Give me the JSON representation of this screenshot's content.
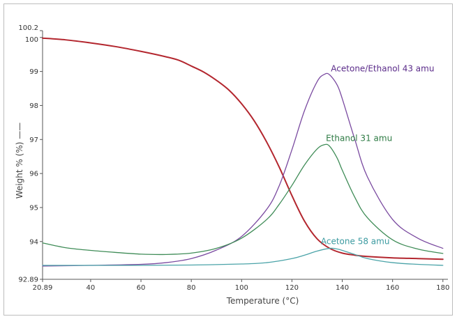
{
  "chart_data": {
    "type": "line",
    "title": "",
    "xlabel": "Temperature (°C)",
    "ylabel": "Weight % (%) ——",
    "xlim": [
      20.89,
      182
    ],
    "ylim": [
      92.89,
      100.2
    ],
    "x_ticks": [
      "20.89",
      "40",
      "60",
      "80",
      "100",
      "120",
      "140",
      "160",
      "180"
    ],
    "x_tick_values": [
      20.89,
      40,
      60,
      80,
      100,
      120,
      140,
      160,
      180
    ],
    "y_ticks": [
      "92.89",
      "94",
      "95",
      "96",
      "97",
      "98",
      "99",
      "100",
      "100.2"
    ],
    "y_tick_values": [
      92.89,
      94,
      95,
      96,
      97,
      98,
      99,
      100,
      100.2
    ],
    "grid": false,
    "legend": "none",
    "series": [
      {
        "color": "#b3262e",
        "x": [
          20.89,
          30,
          40,
          50,
          60,
          70,
          75,
          80,
          85,
          90,
          95,
          100,
          105,
          110,
          115,
          120,
          125,
          130,
          135,
          140,
          145,
          150,
          160,
          170,
          180
        ],
        "values": [
          99.98,
          99.93,
          99.84,
          99.73,
          99.59,
          99.43,
          99.33,
          99.16,
          98.98,
          98.74,
          98.45,
          98.05,
          97.55,
          96.92,
          96.18,
          95.35,
          94.6,
          94.08,
          93.8,
          93.66,
          93.6,
          93.56,
          93.52,
          93.5,
          93.48
        ]
      },
      {
        "name": "Acetone/Ethanol 43 amu",
        "color": "#7a4aa0",
        "x": [
          20.89,
          40,
          60,
          70,
          80,
          90,
          100,
          110,
          115,
          120,
          125,
          130,
          133,
          135,
          138,
          140,
          145,
          150,
          160,
          170,
          180
        ],
        "values": [
          93.28,
          93.3,
          93.33,
          93.38,
          93.5,
          93.75,
          94.15,
          94.95,
          95.65,
          96.7,
          97.85,
          98.7,
          98.92,
          98.9,
          98.6,
          98.2,
          97.0,
          95.9,
          94.65,
          94.1,
          93.8
        ]
      },
      {
        "name": "Ethanol 31 amu",
        "color": "#3f8c57",
        "x": [
          20.89,
          30,
          40,
          50,
          60,
          70,
          80,
          90,
          100,
          110,
          115,
          120,
          125,
          130,
          133,
          135,
          138,
          140,
          145,
          150,
          160,
          170,
          180
        ],
        "values": [
          93.96,
          93.82,
          93.74,
          93.68,
          93.63,
          93.62,
          93.66,
          93.8,
          94.1,
          94.65,
          95.1,
          95.65,
          96.25,
          96.72,
          96.85,
          96.8,
          96.45,
          96.1,
          95.3,
          94.7,
          94.05,
          93.78,
          93.65
        ]
      },
      {
        "name": "Acetone 58 amu",
        "color": "#4aa3a8",
        "x": [
          20.89,
          40,
          60,
          80,
          100,
          110,
          120,
          125,
          130,
          135,
          138,
          140,
          145,
          150,
          160,
          170,
          180
        ],
        "values": [
          93.3,
          93.3,
          93.3,
          93.31,
          93.34,
          93.38,
          93.5,
          93.6,
          93.72,
          93.8,
          93.78,
          93.74,
          93.62,
          93.5,
          93.38,
          93.33,
          93.3
        ]
      }
    ],
    "annotations": [
      {
        "text": "Acetone/Ethanol 43 amu",
        "x": 135.5,
        "y": 99.0,
        "color": "#5b2c8a"
      },
      {
        "text": "Ethanol 31 amu",
        "x": 133.5,
        "y": 96.95,
        "color": "#2e7b44"
      },
      {
        "text": "Acetone 58 amu",
        "x": 131.5,
        "y": 93.92,
        "color": "#3b9aa0"
      }
    ]
  }
}
